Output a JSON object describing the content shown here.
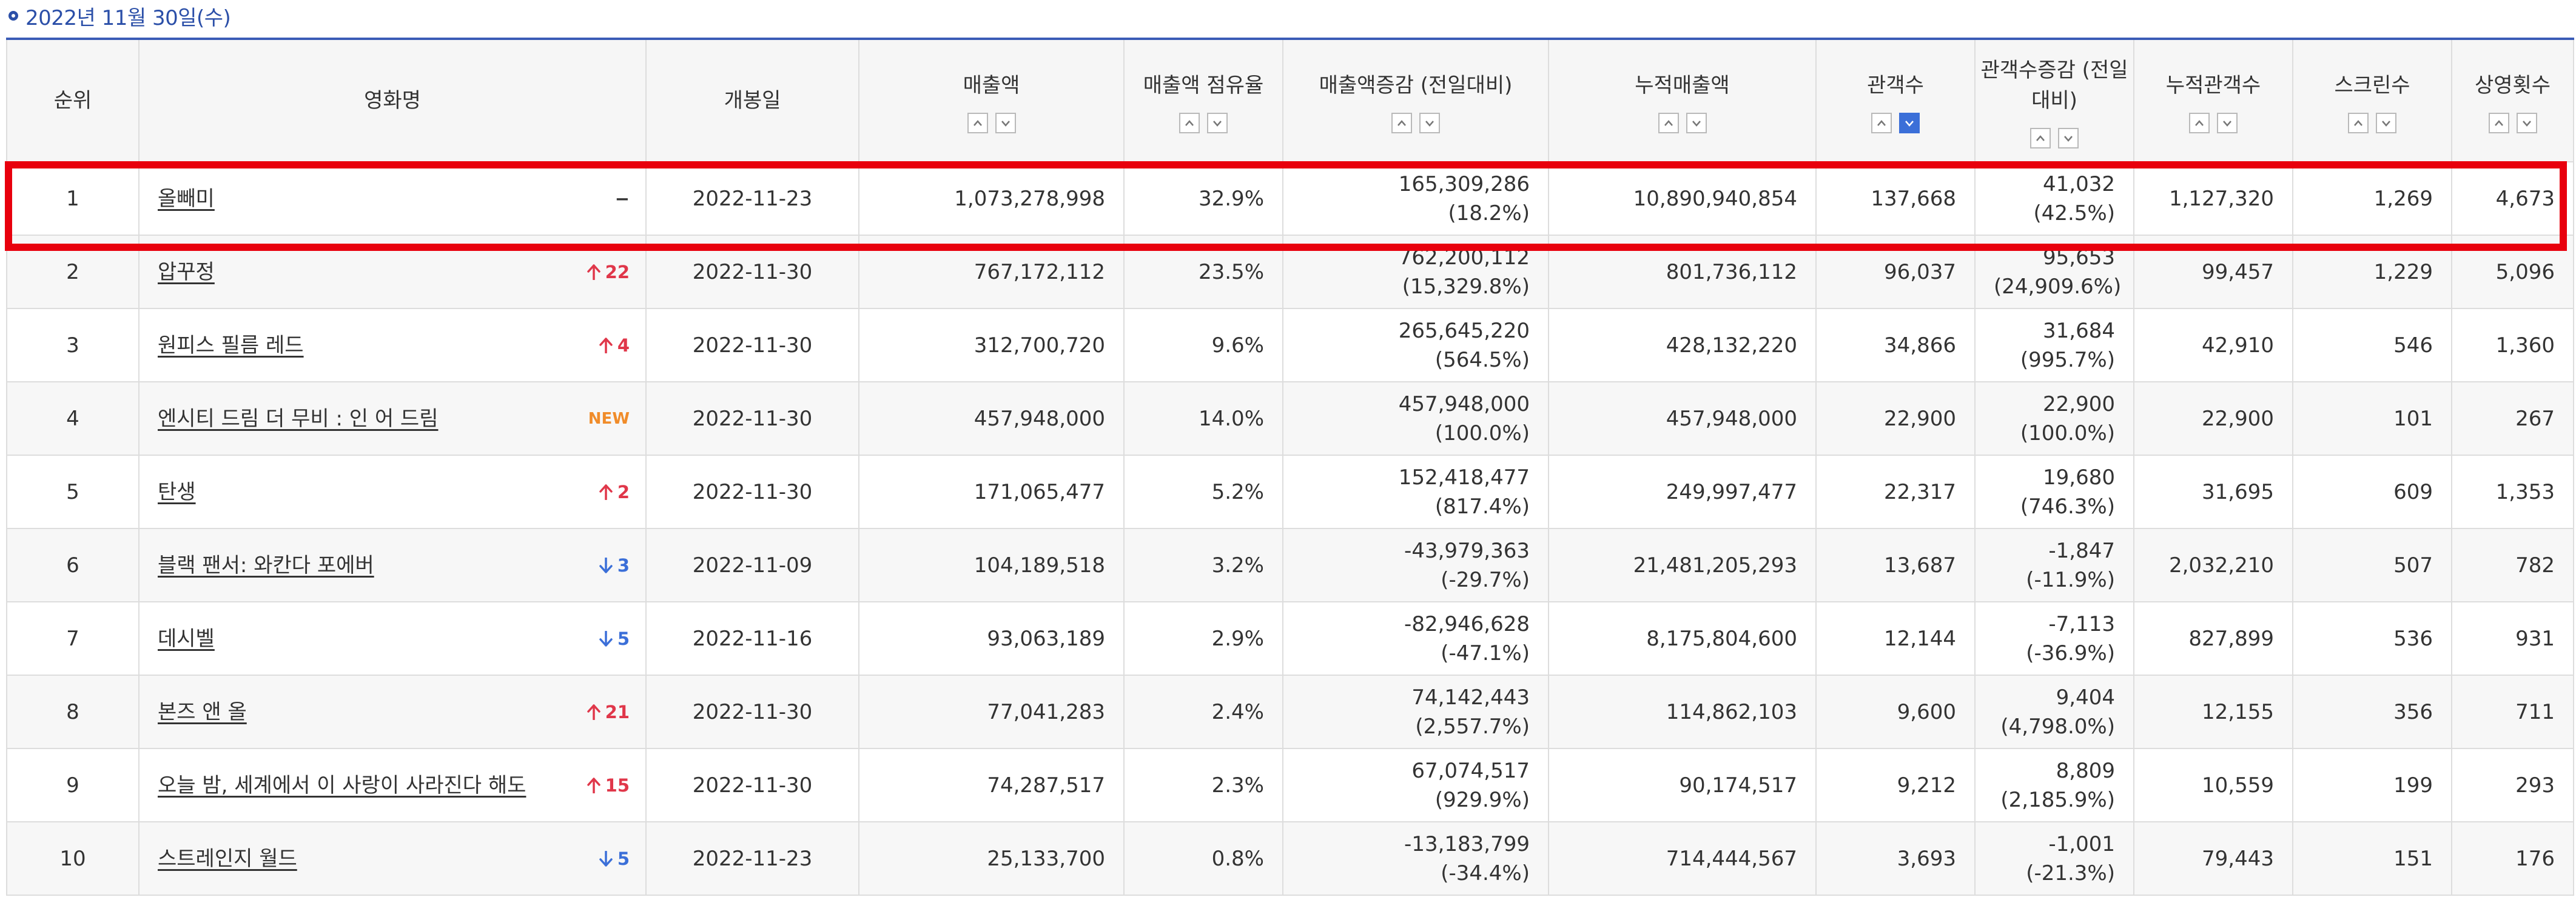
{
  "date_header": "2022년 11월 30일(수)",
  "colors": {
    "accent": "#2b4fa8",
    "up": "#e0374a",
    "down": "#3b6fd8",
    "new": "#f08c2a",
    "highlight": "#e8000d"
  },
  "columns": [
    {
      "key": "rank",
      "label": "순위",
      "sortable": false
    },
    {
      "key": "title",
      "label": "영화명",
      "sortable": false
    },
    {
      "key": "open_date",
      "label": "개봉일",
      "sortable": false
    },
    {
      "key": "sales",
      "label": "매출액",
      "sortable": true
    },
    {
      "key": "share",
      "label": "매출액 점유율",
      "sortable": true
    },
    {
      "key": "sales_change",
      "label": "매출액증감 (전일대비)",
      "sortable": true
    },
    {
      "key": "cum_sales",
      "label": "누적매출액",
      "sortable": true
    },
    {
      "key": "audience",
      "label": "관객수",
      "sortable": true,
      "active_sort": "down"
    },
    {
      "key": "audience_change",
      "label": "관객수증감 (전일대비)",
      "sortable": true
    },
    {
      "key": "cum_audience",
      "label": "누적관객수",
      "sortable": true
    },
    {
      "key": "screens",
      "label": "스크린수",
      "sortable": true
    },
    {
      "key": "showings",
      "label": "상영횟수",
      "sortable": true
    }
  ],
  "rows": [
    {
      "rank": "1",
      "title": "올빼미",
      "change_type": "same",
      "change": "−",
      "open_date": "2022-11-23",
      "sales": "1,073,278,998",
      "share": "32.9%",
      "sales_change": "165,309,286",
      "sales_change_pct": "(18.2%)",
      "cum_sales": "10,890,940,854",
      "audience": "137,668",
      "audience_change": "41,032",
      "audience_change_pct": "(42.5%)",
      "cum_audience": "1,127,320",
      "screens": "1,269",
      "showings": "4,673"
    },
    {
      "rank": "2",
      "title": "압꾸정",
      "change_type": "up",
      "change": "22",
      "open_date": "2022-11-30",
      "sales": "767,172,112",
      "share": "23.5%",
      "sales_change": "762,200,112",
      "sales_change_pct": "(15,329.8%)",
      "cum_sales": "801,736,112",
      "audience": "96,037",
      "audience_change": "95,653",
      "audience_change_pct": "(24,909.6%)",
      "cum_audience": "99,457",
      "screens": "1,229",
      "showings": "5,096"
    },
    {
      "rank": "3",
      "title": "원피스 필름 레드",
      "change_type": "up",
      "change": "4",
      "open_date": "2022-11-30",
      "sales": "312,700,720",
      "share": "9.6%",
      "sales_change": "265,645,220",
      "sales_change_pct": "(564.5%)",
      "cum_sales": "428,132,220",
      "audience": "34,866",
      "audience_change": "31,684",
      "audience_change_pct": "(995.7%)",
      "cum_audience": "42,910",
      "screens": "546",
      "showings": "1,360"
    },
    {
      "rank": "4",
      "title": "엔시티 드림 더 무비 : 인 어 드림",
      "change_type": "new",
      "change": "NEW",
      "open_date": "2022-11-30",
      "sales": "457,948,000",
      "share": "14.0%",
      "sales_change": "457,948,000",
      "sales_change_pct": "(100.0%)",
      "cum_sales": "457,948,000",
      "audience": "22,900",
      "audience_change": "22,900",
      "audience_change_pct": "(100.0%)",
      "cum_audience": "22,900",
      "screens": "101",
      "showings": "267"
    },
    {
      "rank": "5",
      "title": "탄생",
      "change_type": "up",
      "change": "2",
      "open_date": "2022-11-30",
      "sales": "171,065,477",
      "share": "5.2%",
      "sales_change": "152,418,477",
      "sales_change_pct": "(817.4%)",
      "cum_sales": "249,997,477",
      "audience": "22,317",
      "audience_change": "19,680",
      "audience_change_pct": "(746.3%)",
      "cum_audience": "31,695",
      "screens": "609",
      "showings": "1,353"
    },
    {
      "rank": "6",
      "title": "블랙 팬서: 와칸다 포에버",
      "change_type": "down",
      "change": "3",
      "open_date": "2022-11-09",
      "sales": "104,189,518",
      "share": "3.2%",
      "sales_change": "-43,979,363",
      "sales_change_pct": "(-29.7%)",
      "cum_sales": "21,481,205,293",
      "audience": "13,687",
      "audience_change": "-1,847",
      "audience_change_pct": "(-11.9%)",
      "cum_audience": "2,032,210",
      "screens": "507",
      "showings": "782"
    },
    {
      "rank": "7",
      "title": "데시벨",
      "change_type": "down",
      "change": "5",
      "open_date": "2022-11-16",
      "sales": "93,063,189",
      "share": "2.9%",
      "sales_change": "-82,946,628",
      "sales_change_pct": "(-47.1%)",
      "cum_sales": "8,175,804,600",
      "audience": "12,144",
      "audience_change": "-7,113",
      "audience_change_pct": "(-36.9%)",
      "cum_audience": "827,899",
      "screens": "536",
      "showings": "931"
    },
    {
      "rank": "8",
      "title": "본즈 앤 올",
      "change_type": "up",
      "change": "21",
      "open_date": "2022-11-30",
      "sales": "77,041,283",
      "share": "2.4%",
      "sales_change": "74,142,443",
      "sales_change_pct": "(2,557.7%)",
      "cum_sales": "114,862,103",
      "audience": "9,600",
      "audience_change": "9,404",
      "audience_change_pct": "(4,798.0%)",
      "cum_audience": "12,155",
      "screens": "356",
      "showings": "711"
    },
    {
      "rank": "9",
      "title": "오늘 밤, 세계에서 이 사랑이 사라진다 해도",
      "change_type": "up",
      "change": "15",
      "open_date": "2022-11-30",
      "sales": "74,287,517",
      "share": "2.3%",
      "sales_change": "67,074,517",
      "sales_change_pct": "(929.9%)",
      "cum_sales": "90,174,517",
      "audience": "9,212",
      "audience_change": "8,809",
      "audience_change_pct": "(2,185.9%)",
      "cum_audience": "10,559",
      "screens": "199",
      "showings": "293"
    },
    {
      "rank": "10",
      "title": "스트레인지 월드",
      "change_type": "down",
      "change": "5",
      "open_date": "2022-11-23",
      "sales": "25,133,700",
      "share": "0.8%",
      "sales_change": "-13,183,799",
      "sales_change_pct": "(-34.4%)",
      "cum_sales": "714,444,567",
      "audience": "3,693",
      "audience_change": "-1,001",
      "audience_change_pct": "(-21.3%)",
      "cum_audience": "79,443",
      "screens": "151",
      "showings": "176"
    }
  ]
}
